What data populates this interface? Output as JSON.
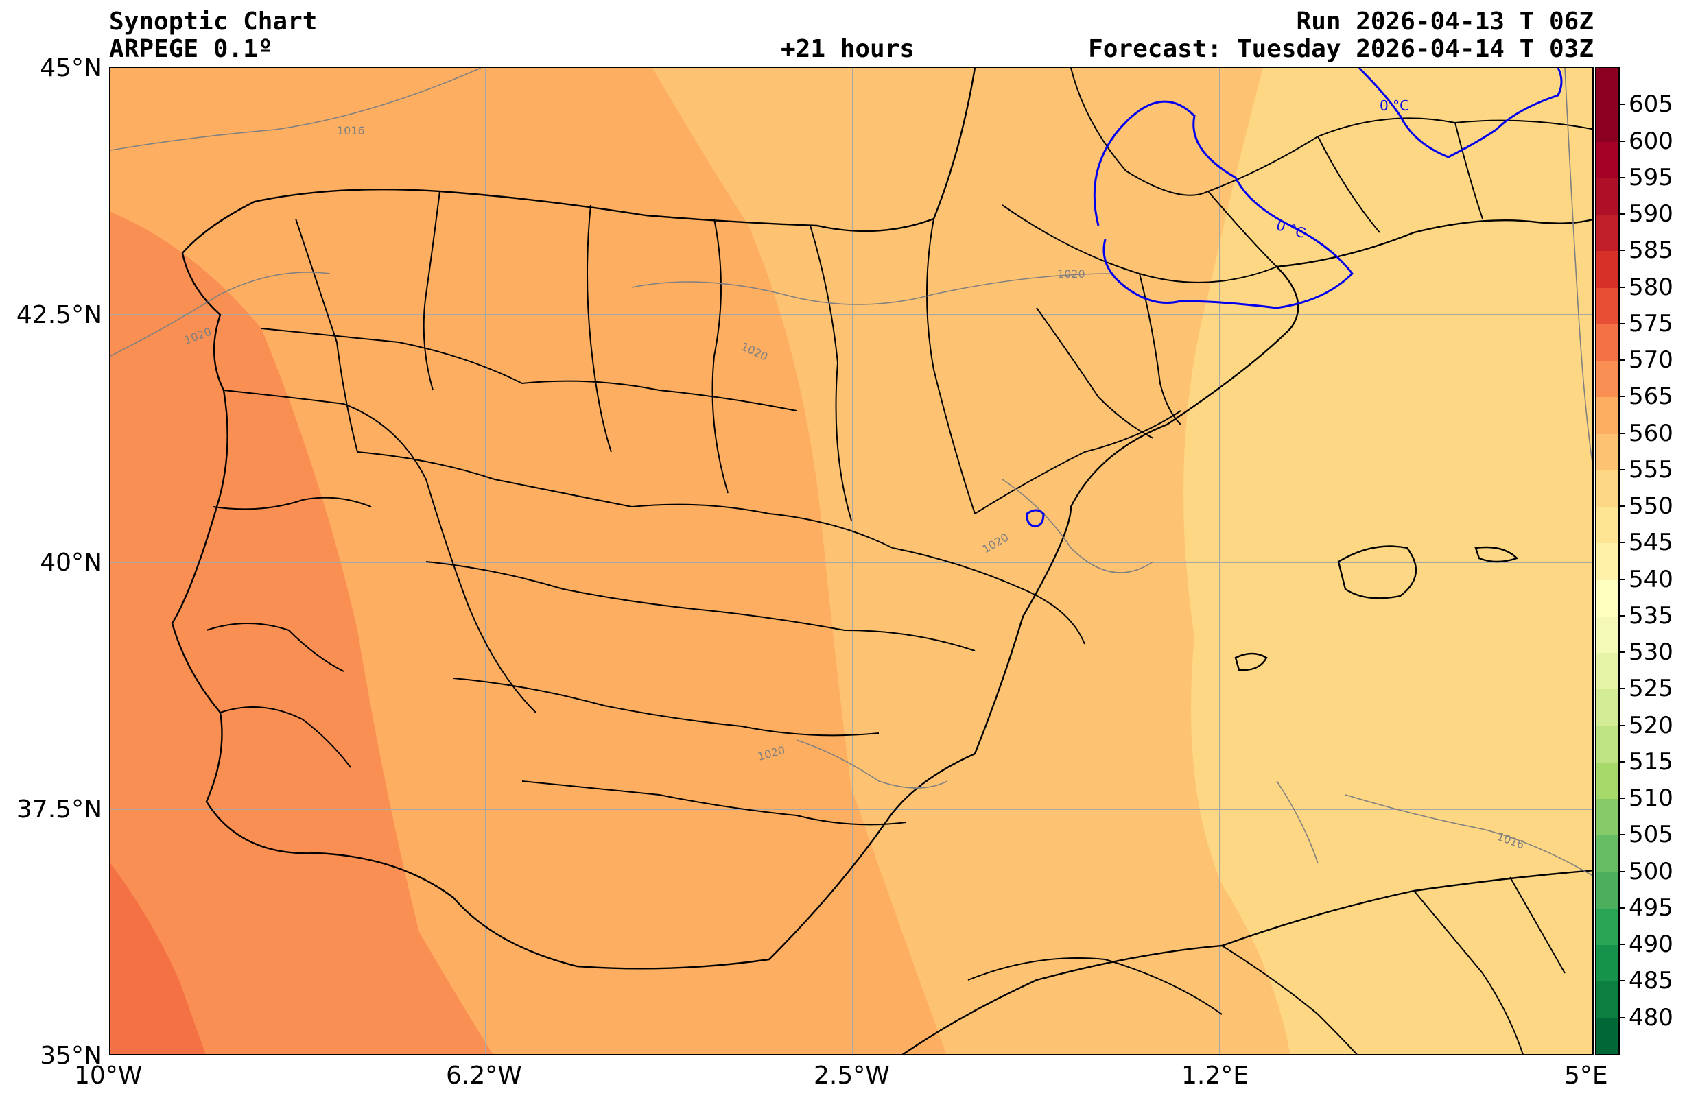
{
  "header": {
    "title": "Synoptic Chart",
    "model": "ARPEGE 0.1º",
    "lead_time": "+21 hours",
    "run": "Run 2026-04-13 T 06Z",
    "forecast": "Forecast: Tuesday 2026-04-14 T 03Z"
  },
  "axes": {
    "lon_labels": [
      "10°W",
      "6.2°W",
      "2.5°W",
      "1.2°E",
      "5°E"
    ],
    "lat_labels": [
      "45°N",
      "42.5°N",
      "40°N",
      "37.5°N",
      "35°N"
    ],
    "lon_range": [
      -10,
      5
    ],
    "lat_range": [
      35,
      45
    ],
    "grid": true
  },
  "contours": {
    "pressure_labels": [
      "1016",
      "1020",
      "1020",
      "1020",
      "1020",
      "1020",
      "1016"
    ],
    "freezing_labels": [
      "0 °C",
      "0 °C"
    ],
    "pressure_color": "#808080",
    "freezing_color": "#0000ee"
  },
  "colorbar": {
    "levels": [
      480,
      485,
      490,
      495,
      500,
      505,
      510,
      515,
      520,
      525,
      530,
      535,
      540,
      545,
      550,
      555,
      560,
      565,
      570,
      575,
      580,
      585,
      590,
      595,
      600,
      605
    ],
    "colors": [
      "#006837",
      "#0a7f40",
      "#15934a",
      "#2aa455",
      "#4caf5d",
      "#66bd63",
      "#86cb67",
      "#a6d96a",
      "#bde383",
      "#d3ec95",
      "#e5f3a6",
      "#f4f9b8",
      "#ffffbf",
      "#fff2a8",
      "#fee593",
      "#fdd783",
      "#fdc373",
      "#fdae61",
      "#f98f52",
      "#f47145",
      "#e84e34",
      "#d73027",
      "#c01f27",
      "#ae1027",
      "#a50026",
      "#8b0020"
    ]
  }
}
